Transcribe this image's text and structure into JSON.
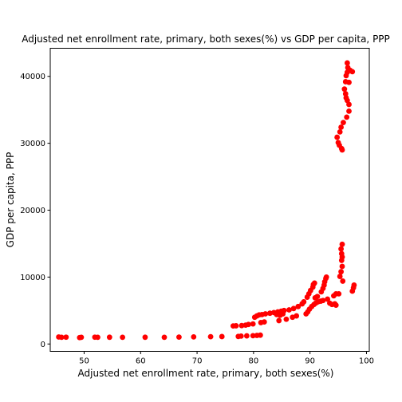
{
  "chart_data": {
    "type": "scatter",
    "title": "Adjusted net enrollment rate, primary, both sexes(%) vs GDP per capita, PPP",
    "xlabel": "Adjusted net enrollment rate, primary, both sexes(%)",
    "ylabel": "GDP per capita, PPP",
    "xlim": [
      44,
      100.5
    ],
    "ylim": [
      -1100,
      44200
    ],
    "xticks": [
      50,
      60,
      70,
      80,
      90,
      100
    ],
    "yticks": [
      0,
      10000,
      20000,
      30000,
      40000
    ],
    "grid": false,
    "marker_color": "#ff0000",
    "points": [
      {
        "x": 45.5,
        "y": 1050
      },
      {
        "x": 46.0,
        "y": 1000
      },
      {
        "x": 46.8,
        "y": 1020
      },
      {
        "x": 49.2,
        "y": 960
      },
      {
        "x": 49.5,
        "y": 1000
      },
      {
        "x": 51.9,
        "y": 1020
      },
      {
        "x": 52.4,
        "y": 1000
      },
      {
        "x": 54.5,
        "y": 1010
      },
      {
        "x": 56.8,
        "y": 1000
      },
      {
        "x": 60.8,
        "y": 1010
      },
      {
        "x": 64.2,
        "y": 1000
      },
      {
        "x": 66.8,
        "y": 1030
      },
      {
        "x": 69.4,
        "y": 1060
      },
      {
        "x": 72.4,
        "y": 1090
      },
      {
        "x": 74.4,
        "y": 1110
      },
      {
        "x": 77.3,
        "y": 1130
      },
      {
        "x": 77.8,
        "y": 1180
      },
      {
        "x": 78.8,
        "y": 1220
      },
      {
        "x": 79.9,
        "y": 1240
      },
      {
        "x": 80.6,
        "y": 1280
      },
      {
        "x": 81.2,
        "y": 1320
      },
      {
        "x": 76.4,
        "y": 2700
      },
      {
        "x": 76.9,
        "y": 2720
      },
      {
        "x": 77.9,
        "y": 2750
      },
      {
        "x": 78.6,
        "y": 2820
      },
      {
        "x": 79.1,
        "y": 2920
      },
      {
        "x": 79.9,
        "y": 3000
      },
      {
        "x": 80.2,
        "y": 4000
      },
      {
        "x": 80.6,
        "y": 4200
      },
      {
        "x": 81.0,
        "y": 4350
      },
      {
        "x": 81.5,
        "y": 4400
      },
      {
        "x": 82.1,
        "y": 4500
      },
      {
        "x": 82.9,
        "y": 4600
      },
      {
        "x": 83.6,
        "y": 4700
      },
      {
        "x": 84.3,
        "y": 4800
      },
      {
        "x": 84.9,
        "y": 4900
      },
      {
        "x": 85.4,
        "y": 5000
      },
      {
        "x": 81.3,
        "y": 3200
      },
      {
        "x": 81.9,
        "y": 3300
      },
      {
        "x": 84.5,
        "y": 3500
      },
      {
        "x": 85.8,
        "y": 3700
      },
      {
        "x": 86.9,
        "y": 4000
      },
      {
        "x": 87.6,
        "y": 4200
      },
      {
        "x": 86.3,
        "y": 5100
      },
      {
        "x": 87.1,
        "y": 5300
      },
      {
        "x": 87.9,
        "y": 5600
      },
      {
        "x": 88.6,
        "y": 6000
      },
      {
        "x": 88.9,
        "y": 6300
      },
      {
        "x": 84.1,
        "y": 4400
      },
      {
        "x": 84.7,
        "y": 4300
      },
      {
        "x": 85.2,
        "y": 4500
      },
      {
        "x": 89.3,
        "y": 4500
      },
      {
        "x": 89.6,
        "y": 4800
      },
      {
        "x": 89.9,
        "y": 5200
      },
      {
        "x": 89.5,
        "y": 7000
      },
      {
        "x": 89.8,
        "y": 7500
      },
      {
        "x": 90.1,
        "y": 8000
      },
      {
        "x": 90.5,
        "y": 8500
      },
      {
        "x": 90.6,
        "y": 8900
      },
      {
        "x": 90.8,
        "y": 9100
      },
      {
        "x": 90.3,
        "y": 5600
      },
      {
        "x": 90.7,
        "y": 5900
      },
      {
        "x": 91.0,
        "y": 6100
      },
      {
        "x": 91.4,
        "y": 6300
      },
      {
        "x": 91.9,
        "y": 6400
      },
      {
        "x": 92.3,
        "y": 6500
      },
      {
        "x": 90.9,
        "y": 6900
      },
      {
        "x": 91.3,
        "y": 7100
      },
      {
        "x": 92.0,
        "y": 7800
      },
      {
        "x": 92.3,
        "y": 8300
      },
      {
        "x": 92.5,
        "y": 8800
      },
      {
        "x": 92.6,
        "y": 9300
      },
      {
        "x": 92.8,
        "y": 9800
      },
      {
        "x": 92.9,
        "y": 10000
      },
      {
        "x": 93.1,
        "y": 6700
      },
      {
        "x": 93.5,
        "y": 6100
      },
      {
        "x": 93.9,
        "y": 5900
      },
      {
        "x": 94.4,
        "y": 6000
      },
      {
        "x": 94.6,
        "y": 5800
      },
      {
        "x": 94.2,
        "y": 7200
      },
      {
        "x": 94.6,
        "y": 7500
      },
      {
        "x": 95.1,
        "y": 7500
      },
      {
        "x": 95.3,
        "y": 10100
      },
      {
        "x": 95.5,
        "y": 10800
      },
      {
        "x": 95.7,
        "y": 11600
      },
      {
        "x": 95.6,
        "y": 12500
      },
      {
        "x": 95.7,
        "y": 13000
      },
      {
        "x": 95.6,
        "y": 13500
      },
      {
        "x": 95.5,
        "y": 14200
      },
      {
        "x": 95.7,
        "y": 14900
      },
      {
        "x": 95.8,
        "y": 9400
      },
      {
        "x": 97.5,
        "y": 7900
      },
      {
        "x": 97.7,
        "y": 8400
      },
      {
        "x": 97.8,
        "y": 8800
      },
      {
        "x": 94.8,
        "y": 30900
      },
      {
        "x": 95.0,
        "y": 30100
      },
      {
        "x": 95.2,
        "y": 29700
      },
      {
        "x": 95.6,
        "y": 29200
      },
      {
        "x": 95.7,
        "y": 29000
      },
      {
        "x": 95.3,
        "y": 31700
      },
      {
        "x": 95.5,
        "y": 32400
      },
      {
        "x": 95.9,
        "y": 33100
      },
      {
        "x": 96.5,
        "y": 33900
      },
      {
        "x": 96.9,
        "y": 34800
      },
      {
        "x": 96.9,
        "y": 35800
      },
      {
        "x": 96.6,
        "y": 36400
      },
      {
        "x": 96.4,
        "y": 36800
      },
      {
        "x": 96.3,
        "y": 37400
      },
      {
        "x": 96.1,
        "y": 38100
      },
      {
        "x": 96.3,
        "y": 39200
      },
      {
        "x": 96.9,
        "y": 39100
      },
      {
        "x": 96.4,
        "y": 40100
      },
      {
        "x": 96.6,
        "y": 40600
      },
      {
        "x": 97.1,
        "y": 40900
      },
      {
        "x": 97.5,
        "y": 40700
      },
      {
        "x": 96.7,
        "y": 41300
      },
      {
        "x": 96.6,
        "y": 42000
      }
    ]
  }
}
